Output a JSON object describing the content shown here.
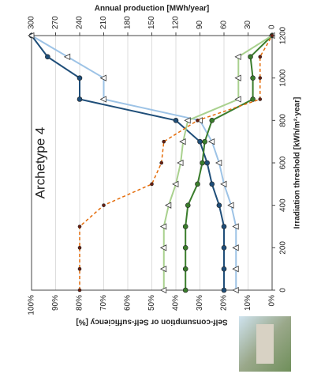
{
  "chart_data": {
    "type": "line",
    "title": "Archetype 4",
    "x_label": "Irradiation threshold [kWh/m²·year]",
    "y_label": "Self-consumption or Self-sufficiency [%]",
    "y2_label": "Annual production [MWh/year]",
    "x": [
      0,
      100,
      200,
      300,
      400,
      500,
      600,
      700,
      800,
      900,
      1000,
      1100,
      1200
    ],
    "xlim": [
      0,
      1200
    ],
    "xticks": [
      0,
      200,
      400,
      600,
      800,
      1000,
      1200
    ],
    "ylim": [
      0,
      100
    ],
    "yticks": [
      {
        "value": 0,
        "label": "0%"
      },
      {
        "value": 10,
        "label": "10%"
      },
      {
        "value": 20,
        "label": "20%"
      },
      {
        "value": 30,
        "label": "30%"
      },
      {
        "value": 40,
        "label": "40%"
      },
      {
        "value": 50,
        "label": "50%"
      },
      {
        "value": 60,
        "label": "60%"
      },
      {
        "value": 70,
        "label": "70%"
      },
      {
        "value": 80,
        "label": "80%"
      },
      {
        "value": 90,
        "label": "90%"
      },
      {
        "value": 100,
        "label": "100%"
      }
    ],
    "y2lim": [
      0,
      300
    ],
    "y2ticks": [
      0,
      30,
      60,
      90,
      120,
      150,
      180,
      210,
      240,
      270,
      300
    ],
    "grid": true,
    "series": [
      {
        "color": "#1f4e79",
        "marker": "circle",
        "dash": false,
        "axis": "y2",
        "values": [
          60,
          60,
          60,
          60,
          66,
          75,
          81,
          90,
          120,
          240,
          240,
          280,
          300
        ]
      },
      {
        "color": "#9dc3e6",
        "marker": "triangle",
        "dash": false,
        "axis": "y2",
        "values": [
          45,
          45,
          45,
          45,
          51,
          60,
          66,
          75,
          90,
          210,
          210,
          255,
          300
        ]
      },
      {
        "color": "#3a7d2c",
        "marker": "circle",
        "dash": false,
        "values": [
          36,
          36,
          36,
          36,
          35,
          31,
          29,
          28,
          25,
          8,
          8,
          9,
          0
        ]
      },
      {
        "color": "#a9d18e",
        "marker": "triangle",
        "dash": false,
        "values": [
          45,
          45,
          45,
          45,
          43,
          40,
          38,
          37,
          35,
          14,
          14,
          14,
          0
        ]
      },
      {
        "color": "#e46c0a",
        "marker": "dot",
        "dash": true,
        "values": [
          80,
          80,
          80,
          80,
          70,
          50,
          46,
          45,
          31,
          5,
          5,
          5,
          0
        ]
      }
    ]
  }
}
